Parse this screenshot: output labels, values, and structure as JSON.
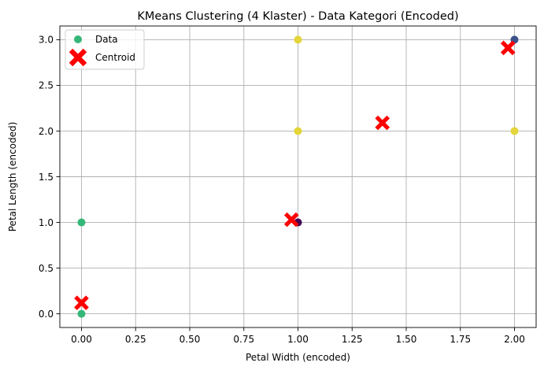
{
  "chart_data": {
    "type": "scatter",
    "title": "KMeans Clustering (4 Klaster) - Data Kategori (Encoded)",
    "xlabel": "Petal Width (encoded)",
    "ylabel": "Petal Length (encoded)",
    "xlim": [
      -0.1,
      2.1
    ],
    "ylim": [
      -0.15,
      3.15
    ],
    "xticks": [
      0.0,
      0.25,
      0.5,
      0.75,
      1.0,
      1.25,
      1.5,
      1.75,
      2.0
    ],
    "xtick_labels": [
      "0.00",
      "0.25",
      "0.50",
      "0.75",
      "1.00",
      "1.25",
      "1.50",
      "1.75",
      "2.00"
    ],
    "yticks": [
      0.0,
      0.5,
      1.0,
      1.5,
      2.0,
      2.5,
      3.0
    ],
    "ytick_labels": [
      "0.0",
      "0.5",
      "1.0",
      "1.5",
      "2.0",
      "2.5",
      "3.0"
    ],
    "grid": true,
    "legend_position": "top-left",
    "series": [
      {
        "name": "Data",
        "legend_color": "#35b779",
        "points": [
          {
            "x": 0,
            "y": 0,
            "color": "#35b779"
          },
          {
            "x": 0,
            "y": 1,
            "color": "#35b779"
          },
          {
            "x": 1,
            "y": 1,
            "color": "#440154"
          },
          {
            "x": 1,
            "y": 2,
            "color": "#e3d53a"
          },
          {
            "x": 1,
            "y": 3,
            "color": "#e3d53a"
          },
          {
            "x": 2,
            "y": 2,
            "color": "#e3d53a"
          },
          {
            "x": 2,
            "y": 3,
            "color": "#3b528b"
          }
        ]
      },
      {
        "name": "Centroid",
        "color": "#ff0000",
        "marker": "X",
        "points": [
          {
            "x": 0.0,
            "y": 0.12
          },
          {
            "x": 0.97,
            "y": 1.03
          },
          {
            "x": 1.39,
            "y": 2.09
          },
          {
            "x": 1.97,
            "y": 2.91
          }
        ]
      }
    ]
  }
}
